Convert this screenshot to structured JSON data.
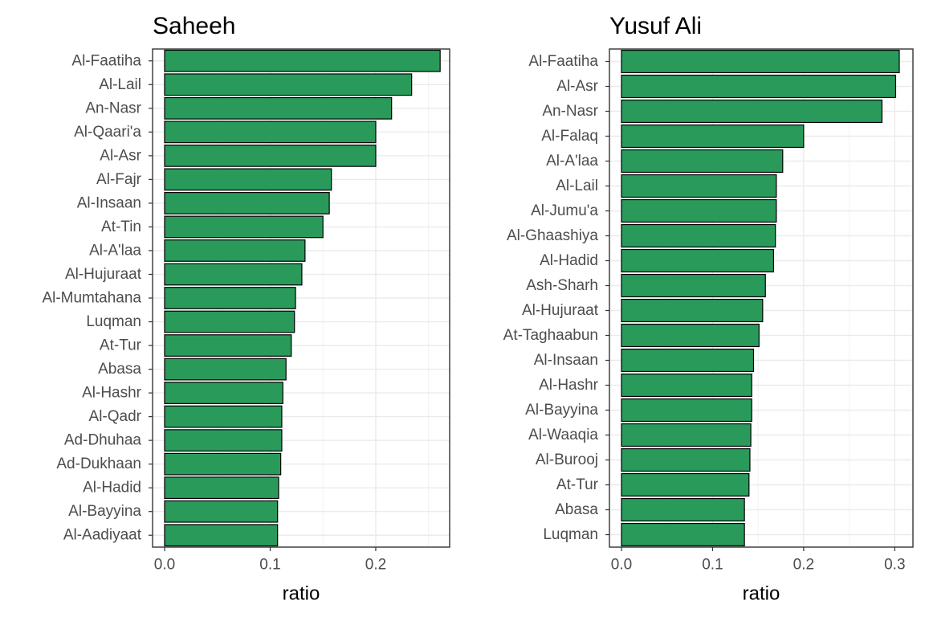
{
  "chart_data": [
    {
      "type": "bar",
      "orientation": "horizontal",
      "title": "Saheeh",
      "xlabel": "ratio",
      "ylabel": "",
      "xlim": [
        0,
        0.27
      ],
      "xticks": [
        0.0,
        0.1,
        0.2
      ],
      "xtick_labels": [
        "0.0",
        "0.1",
        "0.2"
      ],
      "grid": true,
      "bar_color": "#2a9a5b",
      "categories": [
        "Al-Faatiha",
        "Al-Lail",
        "An-Nasr",
        "Al-Qaari'a",
        "Al-Asr",
        "Al-Fajr",
        "Al-Insaan",
        "At-Tin",
        "Al-A'laa",
        "Al-Hujuraat",
        "Al-Mumtahana",
        "Luqman",
        "At-Tur",
        "Abasa",
        "Al-Hashr",
        "Al-Qadr",
        "Ad-Dhuhaa",
        "Ad-Dukhaan",
        "Al-Hadid",
        "Al-Bayyina",
        "Al-Aadiyaat"
      ],
      "values": [
        0.261,
        0.234,
        0.215,
        0.2,
        0.2,
        0.158,
        0.156,
        0.15,
        0.133,
        0.13,
        0.124,
        0.123,
        0.12,
        0.115,
        0.112,
        0.111,
        0.111,
        0.11,
        0.108,
        0.107,
        0.107
      ]
    },
    {
      "type": "bar",
      "orientation": "horizontal",
      "title": "Yusuf Ali",
      "xlabel": "ratio",
      "ylabel": "",
      "xlim": [
        0,
        0.32
      ],
      "xticks": [
        0.0,
        0.1,
        0.2,
        0.3
      ],
      "xtick_labels": [
        "0.0",
        "0.1",
        "0.2",
        "0.3"
      ],
      "grid": true,
      "bar_color": "#2a9a5b",
      "categories": [
        "Al-Faatiha",
        "Al-Asr",
        "An-Nasr",
        "Al-Falaq",
        "Al-A'laa",
        "Al-Lail",
        "Al-Jumu'a",
        "Al-Ghaashiya",
        "Al-Hadid",
        "Ash-Sharh",
        "Al-Hujuraat",
        "At-Taghaabun",
        "Al-Insaan",
        "Al-Hashr",
        "Al-Bayyina",
        "Al-Waaqia",
        "Al-Burooj",
        "At-Tur",
        "Abasa",
        "Luqman"
      ],
      "values": [
        0.305,
        0.301,
        0.286,
        0.2,
        0.177,
        0.17,
        0.17,
        0.169,
        0.167,
        0.158,
        0.155,
        0.151,
        0.145,
        0.143,
        0.143,
        0.142,
        0.141,
        0.14,
        0.135,
        0.135
      ]
    }
  ]
}
